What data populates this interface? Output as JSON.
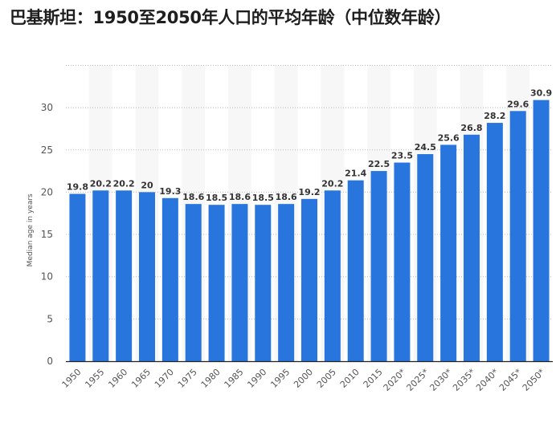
{
  "chart_data": {
    "type": "bar",
    "title": "巴基斯坦：1950至2050年人口的平均年龄（中位数年龄）",
    "xlabel": "",
    "ylabel": "Median age in years",
    "ylim": [
      0,
      35
    ],
    "yticks": [
      0,
      5,
      10,
      15,
      20,
      25,
      30
    ],
    "grid": true,
    "bar_color": "#2876dd",
    "categories": [
      "1950",
      "1955",
      "1960",
      "1965",
      "1970",
      "1975",
      "1980",
      "1985",
      "1990",
      "1995",
      "2000",
      "2005",
      "2010",
      "2015",
      "2020*",
      "2025*",
      "2030*",
      "2035*",
      "2040*",
      "2045*",
      "2050*"
    ],
    "values": [
      19.8,
      20.2,
      20.2,
      20,
      19.3,
      18.6,
      18.5,
      18.6,
      18.5,
      18.6,
      19.2,
      20.2,
      21.4,
      22.5,
      23.5,
      24.5,
      25.6,
      26.8,
      28.2,
      29.6,
      30.9
    ],
    "data_labels": [
      "19.8",
      "20.2",
      "20.2",
      "20",
      "19.3",
      "18.6",
      "18.5",
      "18.6",
      "18.5",
      "18.6",
      "19.2",
      "20.2",
      "21.4",
      "22.5",
      "23.5",
      "24.5",
      "25.6",
      "26.8",
      "28.2",
      "29.6",
      "30.9"
    ]
  }
}
